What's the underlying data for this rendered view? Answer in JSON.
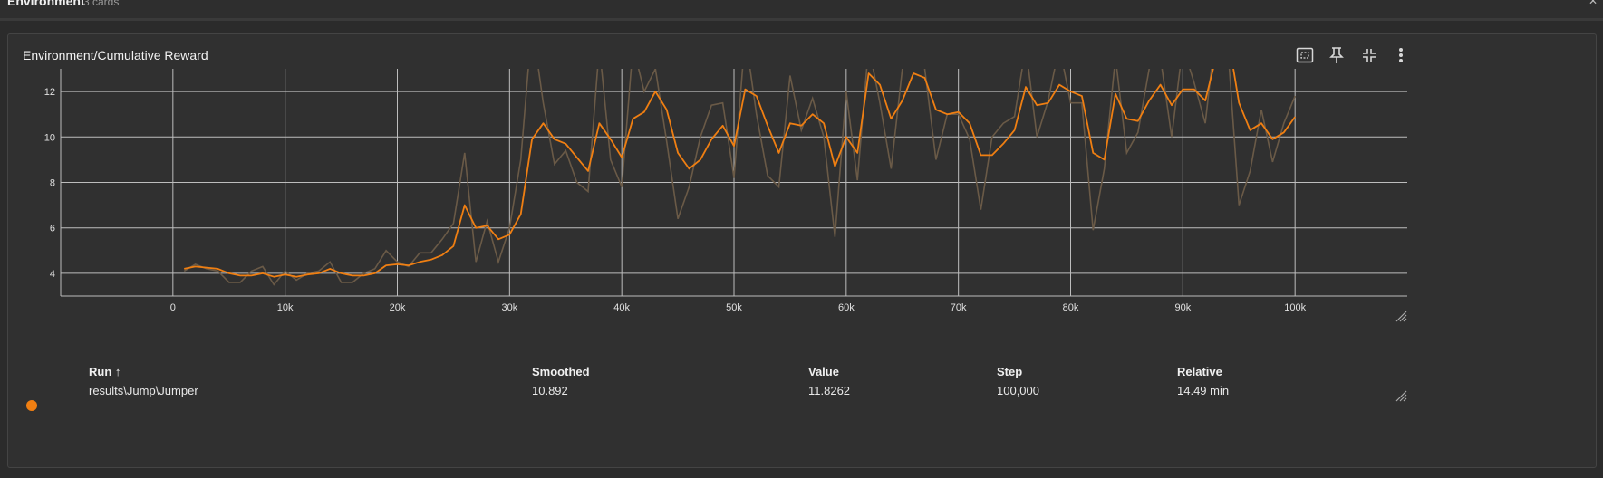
{
  "section": {
    "title": "Environment",
    "count": "3 cards"
  },
  "card": {
    "title": "Environment/Cumulative Reward"
  },
  "table": {
    "headers": {
      "run": "Run ↑",
      "smoothed": "Smoothed",
      "value": "Value",
      "step": "Step",
      "relative": "Relative"
    },
    "row": {
      "run": "results\\Jump\\Jumper",
      "smoothed": "10.892",
      "value": "11.8262",
      "step": "100,000",
      "relative": "14.49 min"
    }
  },
  "colors": {
    "series": "#f07f12",
    "raw": "#6a5a47"
  },
  "chart_data": {
    "type": "line",
    "x_ticks": [
      0,
      10000,
      20000,
      30000,
      40000,
      50000,
      60000,
      70000,
      80000,
      90000,
      100000
    ],
    "x_tick_labels": [
      "0",
      "10k",
      "20k",
      "30k",
      "40k",
      "50k",
      "60k",
      "70k",
      "80k",
      "90k",
      "100k"
    ],
    "y_ticks": [
      4,
      6,
      8,
      10,
      12
    ],
    "y_tick_labels": [
      "4",
      "6",
      "8",
      "10",
      "12"
    ],
    "xlim": [
      -10000,
      110000
    ],
    "ylim": [
      3,
      13
    ],
    "grid": true,
    "series": [
      {
        "name": "results\\Jump\\Jumper",
        "role": "smoothed",
        "x": [
          1000,
          2000,
          3000,
          4000,
          5000,
          6000,
          7000,
          8000,
          9000,
          10000,
          11000,
          12000,
          13000,
          14000,
          15000,
          16000,
          17000,
          18000,
          19000,
          20000,
          21000,
          22000,
          23000,
          24000,
          25000,
          26000,
          27000,
          28000,
          29000,
          30000,
          31000,
          32000,
          33000,
          34000,
          35000,
          36000,
          37000,
          38000,
          39000,
          40000,
          41000,
          42000,
          43000,
          44000,
          45000,
          46000,
          47000,
          48000,
          49000,
          50000,
          51000,
          52000,
          53000,
          54000,
          55000,
          56000,
          57000,
          58000,
          59000,
          60000,
          61000,
          62000,
          63000,
          64000,
          65000,
          66000,
          67000,
          68000,
          69000,
          70000,
          71000,
          72000,
          73000,
          74000,
          75000,
          76000,
          77000,
          78000,
          79000,
          80000,
          81000,
          82000,
          83000,
          84000,
          85000,
          86000,
          87000,
          88000,
          89000,
          90000,
          91000,
          92000,
          93000,
          94000,
          95000,
          96000,
          97000,
          98000,
          99000,
          100000
        ],
        "y": [
          4.2,
          4.3,
          4.25,
          4.2,
          4.0,
          3.9,
          3.9,
          4.0,
          3.85,
          3.95,
          3.85,
          3.95,
          4.0,
          4.2,
          4.0,
          3.9,
          3.9,
          4.0,
          4.35,
          4.4,
          4.35,
          4.5,
          4.6,
          4.8,
          5.2,
          7.0,
          6.0,
          6.1,
          5.5,
          5.7,
          6.6,
          9.9,
          10.6,
          9.9,
          9.7,
          9.1,
          8.5,
          10.6,
          9.9,
          9.1,
          10.8,
          11.1,
          12.0,
          11.2,
          9.3,
          8.6,
          9.0,
          9.9,
          10.5,
          9.6,
          12.1,
          11.8,
          10.5,
          9.3,
          10.6,
          10.5,
          11.0,
          10.6,
          8.7,
          10.0,
          9.3,
          12.8,
          12.3,
          10.8,
          11.6,
          12.8,
          12.6,
          11.2,
          11.0,
          11.1,
          10.6,
          9.2,
          9.2,
          9.7,
          10.3,
          12.2,
          11.4,
          11.5,
          12.3,
          12.0,
          11.8,
          9.3,
          9.0,
          11.9,
          10.8,
          10.7,
          11.6,
          12.3,
          11.4,
          12.1,
          12.1,
          11.6,
          13.6,
          14.5,
          11.5,
          10.3,
          10.6,
          9.9,
          10.2,
          10.89
        ]
      },
      {
        "name": "results\\Jump\\Jumper",
        "role": "raw",
        "x": [
          1000,
          2000,
          3000,
          4000,
          5000,
          6000,
          7000,
          8000,
          9000,
          10000,
          11000,
          12000,
          13000,
          14000,
          15000,
          16000,
          17000,
          18000,
          19000,
          20000,
          21000,
          22000,
          23000,
          24000,
          25000,
          26000,
          27000,
          28000,
          29000,
          30000,
          31000,
          32000,
          33000,
          34000,
          35000,
          36000,
          37000,
          38000,
          39000,
          40000,
          41000,
          42000,
          43000,
          44000,
          45000,
          46000,
          47000,
          48000,
          49000,
          50000,
          51000,
          52000,
          53000,
          54000,
          55000,
          56000,
          57000,
          58000,
          59000,
          60000,
          61000,
          62000,
          63000,
          64000,
          65000,
          66000,
          67000,
          68000,
          69000,
          70000,
          71000,
          72000,
          73000,
          74000,
          75000,
          76000,
          77000,
          78000,
          79000,
          80000,
          81000,
          82000,
          83000,
          84000,
          85000,
          86000,
          87000,
          88000,
          89000,
          90000,
          91000,
          92000,
          93000,
          94000,
          95000,
          96000,
          97000,
          98000,
          99000,
          100000
        ],
        "y": [
          4.1,
          4.4,
          4.2,
          4.1,
          3.6,
          3.6,
          4.1,
          4.3,
          3.5,
          4.1,
          3.7,
          4.0,
          4.1,
          4.5,
          3.6,
          3.6,
          4.0,
          4.2,
          5.0,
          4.5,
          4.3,
          4.9,
          4.9,
          5.5,
          6.2,
          9.3,
          4.5,
          6.3,
          4.5,
          6.0,
          9.0,
          15.0,
          11.5,
          8.8,
          9.4,
          8.0,
          7.6,
          14.0,
          9.0,
          7.8,
          14.0,
          12.0,
          13.0,
          9.8,
          6.4,
          7.8,
          10.0,
          11.4,
          11.5,
          8.2,
          14.5,
          11.0,
          8.3,
          7.8,
          12.7,
          10.3,
          11.7,
          10.0,
          5.6,
          12.0,
          8.1,
          14.0,
          11.5,
          8.6,
          13.0,
          14.5,
          13.0,
          9.0,
          11.0,
          11.0,
          9.9,
          6.8,
          10.0,
          10.6,
          10.9,
          14.0,
          10.0,
          11.6,
          14.0,
          11.5,
          11.5,
          5.9,
          8.6,
          13.5,
          9.3,
          10.2,
          13.0,
          13.5,
          10.0,
          14.0,
          12.4,
          10.6,
          15.0,
          14.0,
          7.0,
          8.5,
          11.2,
          8.9,
          10.6,
          11.8
        ]
      }
    ]
  }
}
